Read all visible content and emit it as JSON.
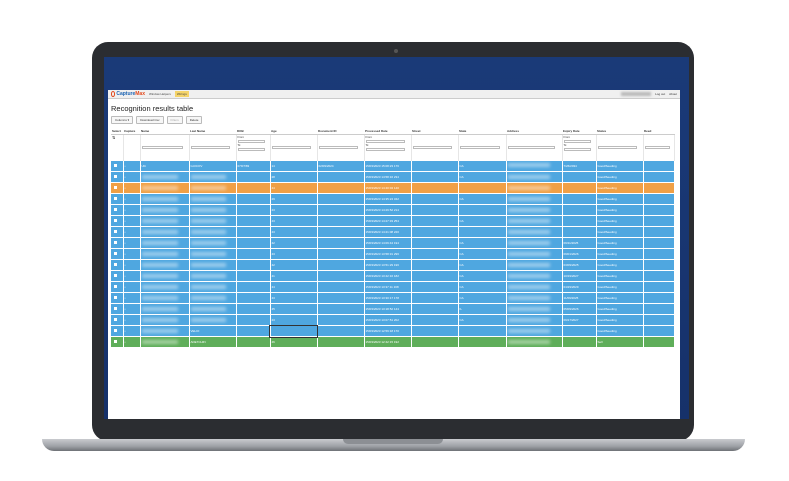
{
  "app": {
    "logo_prefix": "Capture",
    "logo_suffix": "Max",
    "nav": [
      "Window Helpers",
      "Wirings"
    ],
    "right_links": [
      "Log out",
      "About"
    ]
  },
  "page": {
    "title": "Recognition results table"
  },
  "toolbar": {
    "buttons": [
      "Columns ▾",
      "Download Csv",
      "Filters",
      "Delete"
    ]
  },
  "table": {
    "columns": [
      "Select",
      "Capture",
      "Name",
      "Last Name",
      "DOB",
      "Age",
      "Document ID",
      "Processed Date",
      "Street",
      "State",
      "Address",
      "Expiry Date",
      "Status",
      "Deed"
    ],
    "filter_labels": {
      "from": "From:",
      "to": "To:"
    },
    "rows": [
      {
        "kind": "blue",
        "cells": [
          "",
          "",
          "Ulti",
          "GUICOV",
          "07/07/83",
          "14",
          "02/09/2024",
          "15/03/2023 15:08:23 176",
          "",
          "CA",
          "",
          "7/26/2034",
          "Good/Seeding",
          ""
        ]
      },
      {
        "kind": "blue",
        "cells": [
          "",
          "",
          "",
          "",
          "",
          "28",
          "",
          "15/03/2023 14:58:16 234",
          "",
          "CA",
          "",
          "",
          "Good/Seeding",
          ""
        ]
      },
      {
        "kind": "orange",
        "cells": [
          "",
          "",
          "",
          "",
          "",
          "44",
          "",
          "15/03/2023 14:40:04 140",
          "",
          "",
          "",
          "",
          "Good/Seeding",
          ""
        ]
      },
      {
        "kind": "blue",
        "cells": [
          "",
          "",
          "",
          "",
          "",
          "29",
          "",
          "15/03/2023 14:35:24 342",
          "",
          "CA",
          "",
          "",
          "Good/Seeding",
          ""
        ]
      },
      {
        "kind": "blue",
        "cells": [
          "",
          "",
          "",
          "",
          "",
          "43",
          "",
          "15/03/2023 14:29:52 214",
          "",
          "",
          "",
          "",
          "Good/Seeding",
          ""
        ]
      },
      {
        "kind": "blue",
        "cells": [
          "",
          "",
          "",
          "",
          "",
          "43",
          "",
          "15/03/2023 14:27:33 254",
          "",
          "CA",
          "",
          "",
          "Good/Seeding",
          ""
        ]
      },
      {
        "kind": "blue",
        "cells": [
          "",
          "",
          "",
          "",
          "",
          "43",
          "",
          "15/03/2023 14:21:08 220",
          "",
          "",
          "",
          "",
          "Good/Seeding",
          ""
        ]
      },
      {
        "kind": "blue",
        "cells": [
          "",
          "",
          "",
          "",
          "",
          "42",
          "",
          "15/03/2023 14:09:44 194",
          "",
          "CA",
          "",
          "09/11/2025",
          "Good/Seeding",
          ""
        ]
      },
      {
        "kind": "blue",
        "cells": [
          "",
          "",
          "",
          "",
          "",
          "43",
          "",
          "15/03/2023 13:58:31 296",
          "",
          "CA",
          "",
          "09/01/2026",
          "Good/Seeding",
          ""
        ]
      },
      {
        "kind": "blue",
        "cells": [
          "",
          "",
          "",
          "",
          "",
          "42",
          "",
          "15/03/2023 13:51:29 196",
          "",
          "CA",
          "",
          "03/09/2025",
          "Good/Seeding",
          ""
        ]
      },
      {
        "kind": "blue",
        "cells": [
          "",
          "",
          "",
          "",
          "",
          "41",
          "",
          "15/03/2023 13:42:16 182",
          "",
          "CA",
          "",
          "10/19/2027",
          "Good/Seeding",
          ""
        ]
      },
      {
        "kind": "blue",
        "cells": [
          "",
          "",
          "",
          "",
          "",
          "44",
          "",
          "15/03/2023 13:37:11 168",
          "",
          "CA",
          "",
          "04/29/2029",
          "Good/Seeding",
          ""
        ]
      },
      {
        "kind": "blue",
        "cells": [
          "",
          "",
          "",
          "",
          "",
          "43",
          "",
          "15/03/2023 13:30:17 178",
          "",
          "CA",
          "",
          "11/09/2025",
          "Good/Seeding",
          ""
        ]
      },
      {
        "kind": "blue",
        "cells": [
          "",
          "",
          "",
          "",
          "",
          "45",
          "",
          "15/03/2023 13:18:52 144",
          "",
          "IL",
          "",
          "05/09/2026",
          "Good/Seeding",
          ""
        ]
      },
      {
        "kind": "blue",
        "cells": [
          "",
          "",
          "",
          "",
          "",
          "43",
          "",
          "15/03/2023 13:07:51 202",
          "",
          "CA",
          "",
          "09/17/2027",
          "Good/Seeding",
          ""
        ]
      },
      {
        "kind": "blue",
        "cells": [
          "",
          "",
          "",
          "VELIO",
          "",
          "",
          "",
          "15/03/2023 12:59:18 170",
          "",
          "",
          "",
          "",
          "Good/Seeding",
          ""
        ]
      },
      {
        "kind": "green",
        "cells": [
          "",
          "",
          "",
          "ADE7CHIN",
          "",
          "46",
          "",
          "15/03/2023 12:42:15 192",
          "",
          "",
          "",
          "",
          "Sell",
          ""
        ]
      }
    ]
  },
  "colors": {
    "row_blue": "#4fa7e0",
    "row_orange": "#f0a046",
    "row_green": "#5fae5a",
    "screen_bg": "#1a3a78"
  }
}
